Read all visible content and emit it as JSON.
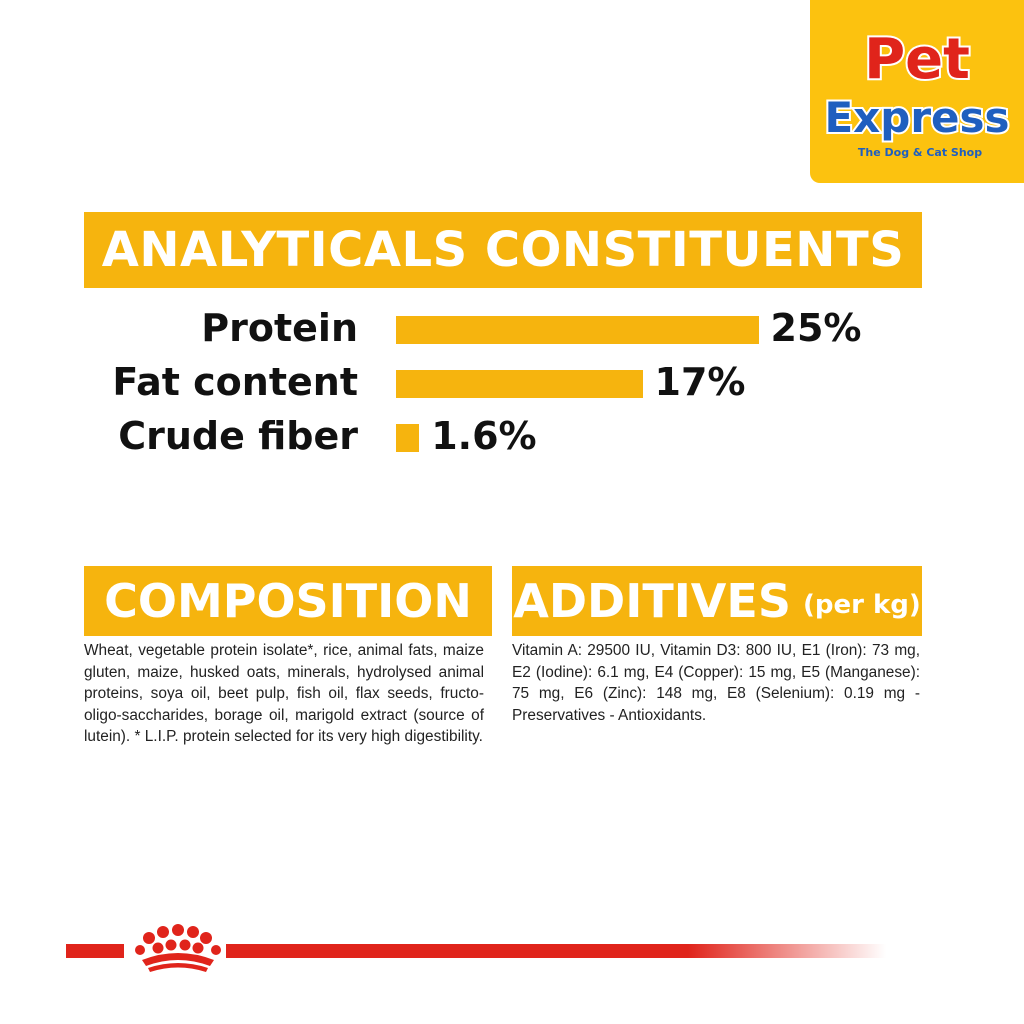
{
  "brand": {
    "logo_line1": "Pet",
    "logo_line2": "Express",
    "logo_tagline": "The Dog & Cat Shop",
    "logo_bg": "#fcc20f",
    "logo_primary": "#e0241b",
    "logo_secondary": "#1f5fbf"
  },
  "analytics": {
    "title": "ANALYTICALS CONSTITUENTS",
    "accent": "#f6b40e"
  },
  "chart_data": {
    "type": "bar",
    "categories": [
      "Protein",
      "Fat content",
      "Crude fiber"
    ],
    "values": [
      25,
      17,
      1.6
    ],
    "value_labels": [
      "25%",
      "17%",
      "1.6%"
    ],
    "unit": "%",
    "orientation": "horizontal",
    "grid": false,
    "legend": "none"
  },
  "composition": {
    "title": "COMPOSITION",
    "text": "Wheat, vegetable protein isolate*, rice, animal fats, maize gluten, maize, husked oats, minerals, hydrolysed animal proteins, soya oil, beet pulp, fish oil, flax seeds, fructo-oligo-saccharides, borage oil, marigold extract (source of lutein). * L.I.P. protein selected for its very high digestibility."
  },
  "additives": {
    "title": "ADDITIVES",
    "subtitle": "(per kg)",
    "text": "Vitamin A: 29500 IU, Vitamin D3: 800 IU, E1 (Iron): 73 mg, E2 (Iodine): 6.1 mg, E4 (Copper): 15 mg, E5 (Manganese): 75 mg, E6 (Zinc): 148 mg, E8 (Selenium): 0.19 mg - Preservatives - Antioxidants."
  },
  "footer": {
    "icon": "crown-icon",
    "accent": "#e0241b"
  }
}
